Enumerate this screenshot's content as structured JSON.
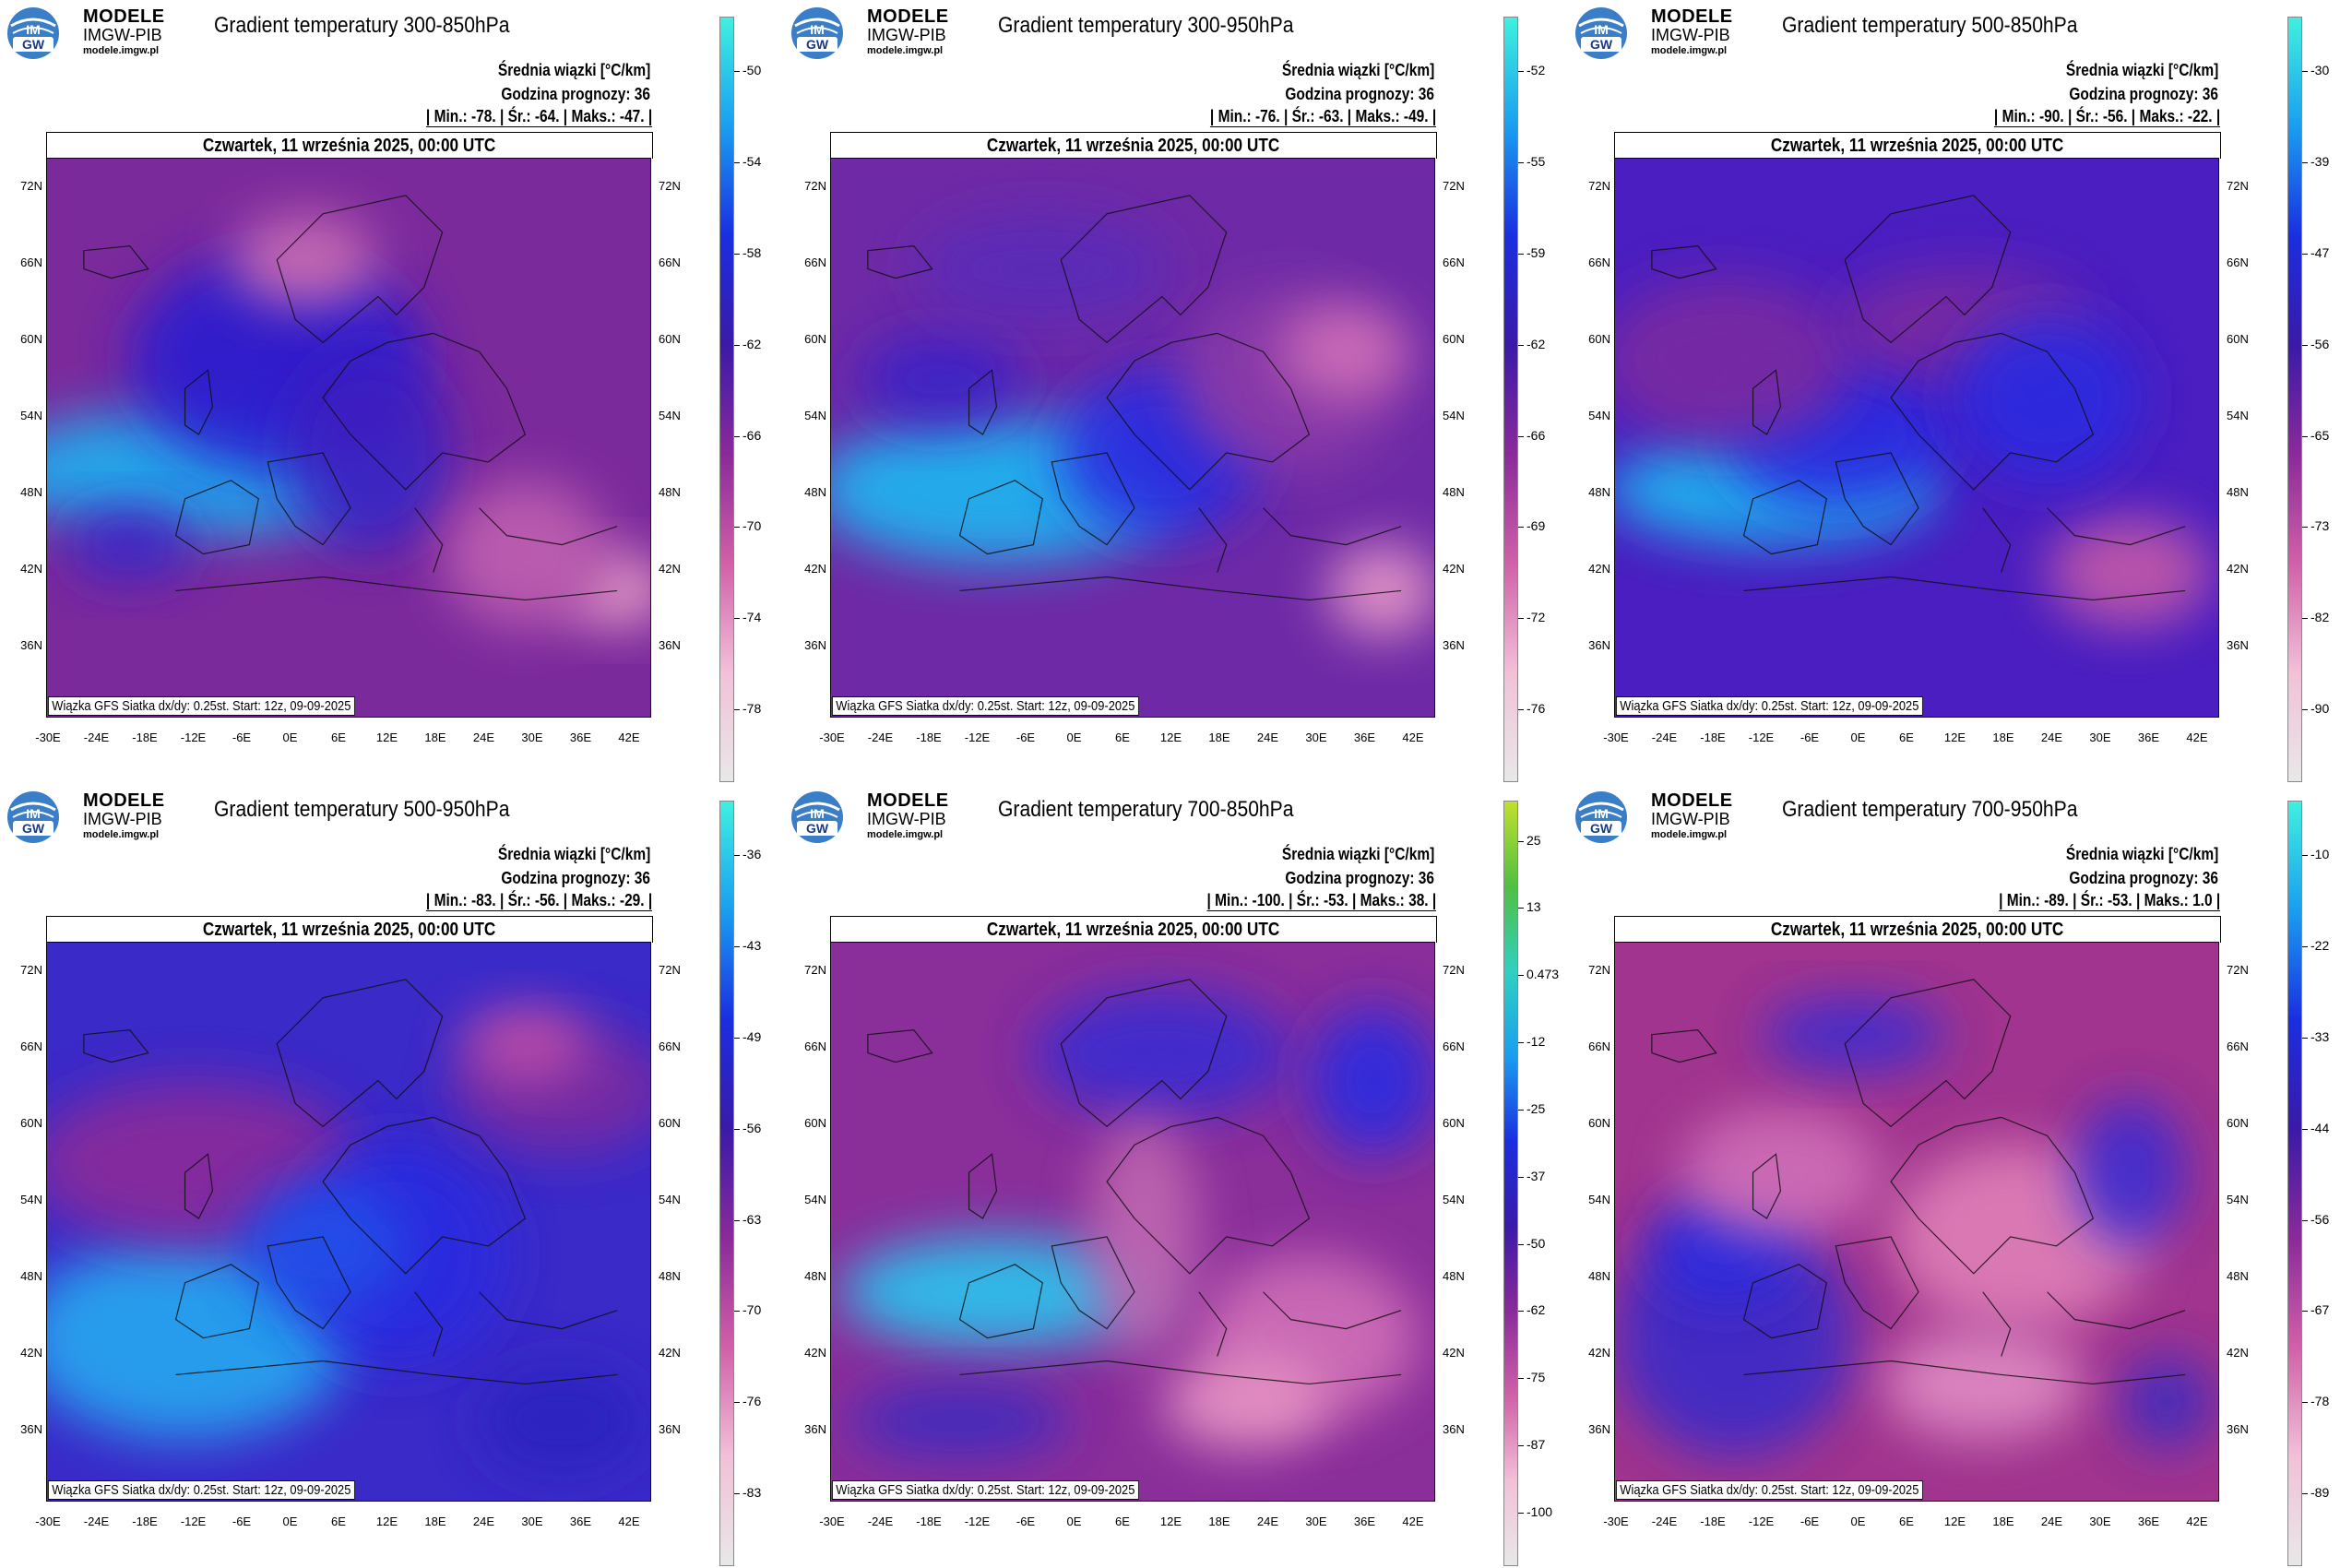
{
  "branding": {
    "line1": "MODELE",
    "line2": "IMGW-PIB",
    "line3": "modele.imgw.pl",
    "logo_text_top": "IM",
    "logo_text_bottom": "GW"
  },
  "common": {
    "units_label": "Średnia wiązki [°C/km]",
    "forecast_hour": "Godzina prognozy: 36",
    "valid_time": "Czwartek, 11 września 2025, 00:00 UTC",
    "source_note": "Wiązka GFS Siatka dx/dy: 0.25st. Start: 12z, 09-09-2025",
    "lat_labels": [
      "72N",
      "66N",
      "60N",
      "54N",
      "48N",
      "42N",
      "36N"
    ],
    "lon_labels": [
      "-30E",
      "-24E",
      "-18E",
      "-12E",
      "-6E",
      "0E",
      "6E",
      "12E",
      "18E",
      "24E",
      "30E",
      "36E",
      "42E"
    ]
  },
  "panels": [
    {
      "title": "Gradient temperatury 300-850hPa",
      "stats": "| Min.:   -78. | Śr.:   -64. | Maks.:   -47. |",
      "colorbar_ticks": [
        "-50",
        "-54",
        "-58",
        "-62",
        "-66",
        "-70",
        "-74",
        "-78"
      ]
    },
    {
      "title": "Gradient temperatury 300-950hPa",
      "stats": "| Min.:   -76. | Śr.:   -63. | Maks.:   -49. |",
      "colorbar_ticks": [
        "-52",
        "-55",
        "-59",
        "-62",
        "-66",
        "-69",
        "-72",
        "-76"
      ]
    },
    {
      "title": "Gradient temperatury 500-850hPa",
      "stats": "| Min.:   -90. | Śr.:   -56. | Maks.:   -22. |",
      "colorbar_ticks": [
        "-30",
        "-39",
        "-47",
        "-56",
        "-65",
        "-73",
        "-82",
        "-90"
      ]
    },
    {
      "title": "Gradient temperatury 500-950hPa",
      "stats": "| Min.:   -83. | Śr.:   -56. | Maks.:   -29. |",
      "colorbar_ticks": [
        "-36",
        "-43",
        "-49",
        "-56",
        "-63",
        "-70",
        "-76",
        "-83"
      ]
    },
    {
      "title": "Gradient temperatury 700-850hPa",
      "stats": "| Min.:   -100. | Śr.:   -53. | Maks.:   38. |",
      "colorbar_ticks": [
        "25",
        "13",
        "0.473",
        "-12",
        "-25",
        "-37",
        "-50",
        "-62",
        "-75",
        "-87",
        "-100"
      ]
    },
    {
      "title": "Gradient temperatury 700-950hPa",
      "stats": "| Min.:   -89. | Śr.:   -53. | Maks.:   1.0 |",
      "colorbar_ticks": [
        "-10",
        "-22",
        "-33",
        "-44",
        "-56",
        "-67",
        "-78",
        "-89"
      ]
    }
  ],
  "colors": {
    "cyan": "#19c8e8",
    "blue": "#1a2ee0",
    "indigo": "#3a1aa8",
    "purple": "#7a2a9a",
    "magenta": "#b0368e",
    "pink": "#e07cb8",
    "lightpink": "#f3c2dc"
  }
}
